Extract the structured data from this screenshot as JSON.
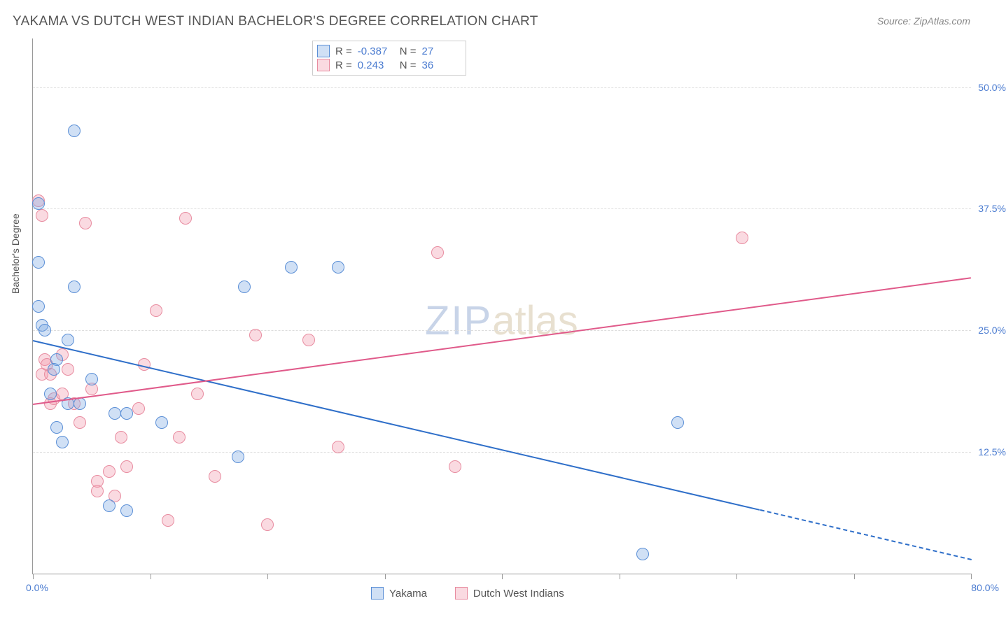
{
  "title": "YAKAMA VS DUTCH WEST INDIAN BACHELOR'S DEGREE CORRELATION CHART",
  "source": "Source: ZipAtlas.com",
  "watermark": {
    "part1": "ZIP",
    "part2": "atlas"
  },
  "axis": {
    "y_title": "Bachelor's Degree",
    "x_min_label": "0.0%",
    "x_max_label": "80.0%",
    "xlim": [
      0,
      80
    ],
    "ylim": [
      0,
      55
    ],
    "y_ticks": [
      {
        "value": 12.5,
        "label": "12.5%"
      },
      {
        "value": 25.0,
        "label": "25.0%"
      },
      {
        "value": 37.5,
        "label": "37.5%"
      },
      {
        "value": 50.0,
        "label": "50.0%"
      }
    ],
    "x_ticks": [
      0,
      10,
      20,
      30,
      40,
      50,
      60,
      70,
      80
    ]
  },
  "colors": {
    "series_a_fill": "rgba(120,165,225,0.35)",
    "series_a_stroke": "#5b8fd6",
    "series_b_fill": "rgba(240,150,170,0.35)",
    "series_b_stroke": "#e88ca0",
    "trend_a": "#2f6fc9",
    "trend_b": "#e05a8a",
    "stat_value": "#4a7bd0",
    "grid": "#dddddd"
  },
  "point_radius": 9,
  "stats": [
    {
      "series": "a",
      "R": "-0.387",
      "N": "27"
    },
    {
      "series": "b",
      "R": "0.243",
      "N": "36"
    }
  ],
  "legend": {
    "a": "Yakama",
    "b": "Dutch West Indians"
  },
  "trend_lines": {
    "a": {
      "x1": 0,
      "y1": 24.0,
      "x2": 62,
      "y2": 6.6,
      "dash_x2": 80,
      "dash_y2": 1.5
    },
    "b": {
      "x1": 0,
      "y1": 17.5,
      "x2": 80,
      "y2": 30.5
    }
  },
  "series_a_points": [
    [
      0.5,
      38.0
    ],
    [
      0.5,
      27.5
    ],
    [
      0.8,
      25.5
    ],
    [
      1.0,
      25.0
    ],
    [
      0.5,
      32.0
    ],
    [
      3.5,
      45.5
    ],
    [
      2.0,
      22.0
    ],
    [
      1.8,
      21.0
    ],
    [
      3.0,
      24.0
    ],
    [
      3.5,
      29.5
    ],
    [
      3.0,
      17.5
    ],
    [
      4.0,
      17.5
    ],
    [
      2.0,
      15.0
    ],
    [
      2.5,
      13.5
    ],
    [
      7.0,
      16.5
    ],
    [
      8.0,
      16.5
    ],
    [
      8.0,
      6.5
    ],
    [
      11.0,
      15.5
    ],
    [
      6.5,
      7.0
    ],
    [
      18.0,
      29.5
    ],
    [
      22.0,
      31.5
    ],
    [
      26.0,
      31.5
    ],
    [
      17.5,
      12.0
    ],
    [
      55.0,
      15.5
    ],
    [
      52.0,
      2.0
    ],
    [
      1.5,
      18.5
    ],
    [
      5.0,
      20.0
    ]
  ],
  "series_b_points": [
    [
      0.5,
      38.3
    ],
    [
      0.8,
      36.8
    ],
    [
      0.8,
      20.5
    ],
    [
      1.0,
      22.0
    ],
    [
      1.2,
      21.5
    ],
    [
      1.5,
      20.5
    ],
    [
      1.5,
      17.5
    ],
    [
      1.8,
      18.0
    ],
    [
      2.5,
      18.5
    ],
    [
      2.5,
      22.5
    ],
    [
      3.0,
      21.0
    ],
    [
      3.5,
      17.5
    ],
    [
      4.0,
      15.5
    ],
    [
      4.5,
      36.0
    ],
    [
      5.0,
      19.0
    ],
    [
      5.5,
      9.5
    ],
    [
      5.5,
      8.5
    ],
    [
      6.5,
      10.5
    ],
    [
      7.0,
      8.0
    ],
    [
      7.5,
      14.0
    ],
    [
      8.0,
      11.0
    ],
    [
      9.0,
      17.0
    ],
    [
      9.5,
      21.5
    ],
    [
      10.5,
      27.0
    ],
    [
      11.5,
      5.5
    ],
    [
      12.5,
      14.0
    ],
    [
      13.0,
      36.5
    ],
    [
      14.0,
      18.5
    ],
    [
      15.5,
      10.0
    ],
    [
      19.0,
      24.5
    ],
    [
      20.0,
      5.0
    ],
    [
      23.5,
      24.0
    ],
    [
      26.0,
      13.0
    ],
    [
      34.5,
      33.0
    ],
    [
      36.0,
      11.0
    ],
    [
      60.5,
      34.5
    ]
  ]
}
